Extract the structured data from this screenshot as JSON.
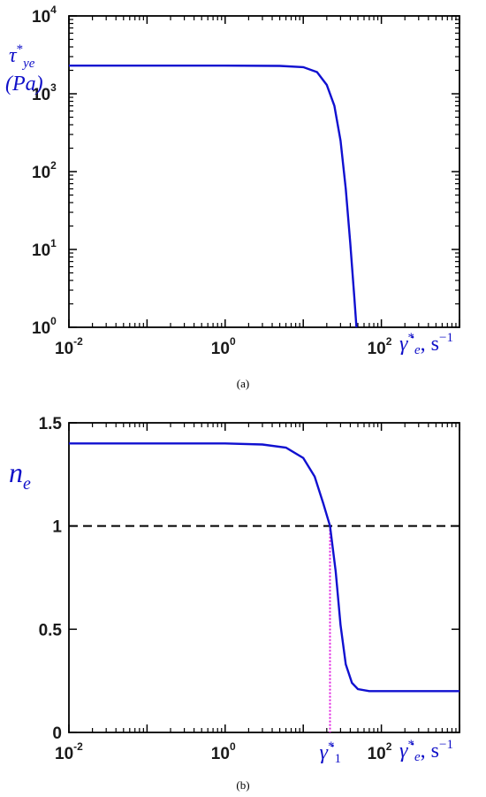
{
  "chart_data": [
    {
      "type": "line",
      "panel": "a",
      "caption": "(a)",
      "x_scale": "log",
      "y_scale": "log",
      "xlim": [
        0.01,
        1000
      ],
      "ylim": [
        1,
        10000
      ],
      "x_ticks": [
        {
          "base": "10",
          "exp": "-2",
          "value": 0.01
        },
        {
          "base": "10",
          "exp": "0",
          "value": 1
        },
        {
          "base": "10",
          "exp": "2",
          "value": 100
        }
      ],
      "y_ticks": [
        {
          "base": "10",
          "exp": "0",
          "value": 1
        },
        {
          "base": "10",
          "exp": "1",
          "value": 10
        },
        {
          "base": "10",
          "exp": "2",
          "value": 100
        },
        {
          "base": "10",
          "exp": "3",
          "value": 1000
        },
        {
          "base": "10",
          "exp": "4",
          "value": 10000
        }
      ],
      "ylabel_line1": "τ*ye",
      "ylabel_line2": "(Pa)",
      "xlabel": "γ̇*e, s⁻¹",
      "line_color": "#1010d0",
      "series": [
        {
          "x": [
            0.01,
            0.1,
            1,
            5,
            10,
            15,
            20,
            25,
            30,
            35,
            40,
            45,
            48
          ],
          "y": [
            2300,
            2300,
            2300,
            2280,
            2200,
            1900,
            1300,
            700,
            250,
            60,
            12,
            2.5,
            1
          ]
        }
      ]
    },
    {
      "type": "line",
      "panel": "b",
      "caption": "(b)",
      "x_scale": "log",
      "y_scale": "linear",
      "xlim": [
        0.01,
        1000
      ],
      "ylim": [
        0,
        1.5
      ],
      "x_ticks": [
        {
          "base": "10",
          "exp": "-2",
          "value": 0.01
        },
        {
          "base": "10",
          "exp": "0",
          "value": 1
        },
        {
          "base": "10",
          "exp": "2",
          "value": 100
        }
      ],
      "y_ticks": [
        {
          "label": "0",
          "value": 0
        },
        {
          "label": "0.5",
          "value": 0.5
        },
        {
          "label": "1",
          "value": 1
        },
        {
          "label": "1.5",
          "value": 1.5
        }
      ],
      "ylabel": "ne",
      "xlabel": "γ̇*e, s⁻¹",
      "marker_label": "γ̇*1",
      "marker_x": 22,
      "reference_y": 1,
      "line_color": "#1010d0",
      "reference_color": "#000000",
      "marker_color": "#e020e0",
      "marker_label_color": "#c01030",
      "series": [
        {
          "x": [
            0.01,
            0.1,
            1,
            3,
            6,
            10,
            14,
            18,
            22,
            26,
            30,
            35,
            42,
            50,
            70,
            100,
            1000
          ],
          "y": [
            1.4,
            1.4,
            1.4,
            1.395,
            1.38,
            1.33,
            1.24,
            1.11,
            1.0,
            0.78,
            0.52,
            0.33,
            0.24,
            0.21,
            0.2,
            0.2,
            0.2
          ]
        }
      ]
    }
  ]
}
